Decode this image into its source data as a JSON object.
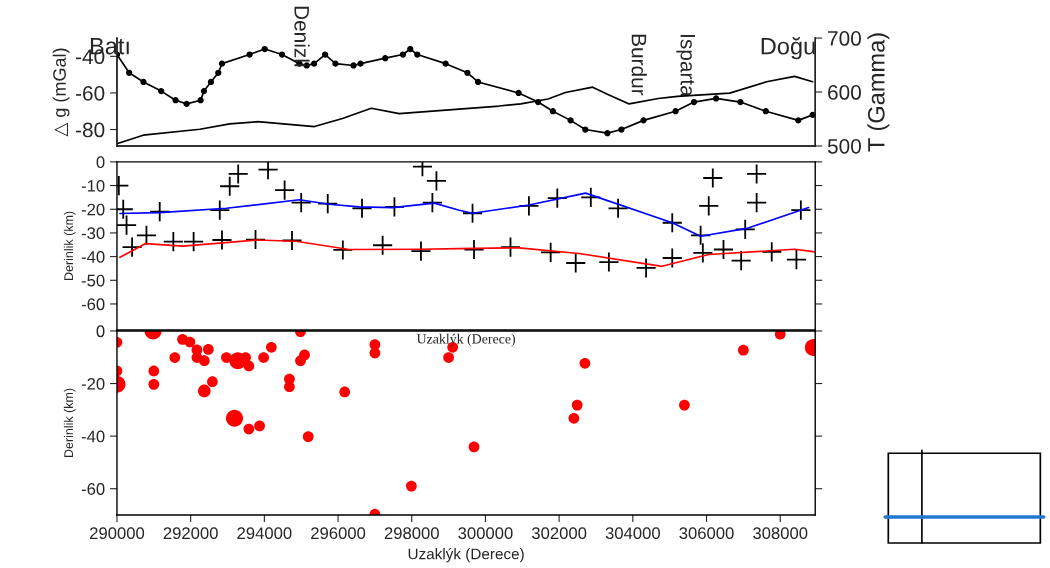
{
  "chart_data": [
    {
      "type": "line",
      "ylabel": "△ g (mGal)",
      "y2label": "T (Gamma)",
      "xlim": [
        290000,
        308950
      ],
      "ylim": [
        -89,
        -30
      ],
      "yticks": [
        -40,
        -60,
        -80
      ],
      "y2lim": [
        500,
        700
      ],
      "y2ticks": [
        500,
        600,
        700
      ],
      "tick_labels": "y",
      "series": [
        {
          "color": "#000000",
          "marker": "circle",
          "x": [
            290000,
            290330,
            290720,
            291200,
            291590,
            291890,
            292270,
            292360,
            292550,
            292750,
            292850,
            293600,
            294010,
            294480,
            294950,
            295150,
            295350,
            295650,
            295930,
            296420,
            296610,
            297280,
            297760,
            297960,
            298150,
            298920,
            299510,
            299800,
            300900,
            301430,
            301830,
            302310,
            302710,
            303310,
            303690,
            304290,
            305160,
            305660,
            306260,
            306920,
            307610,
            308490,
            308880
          ],
          "values": [
            -39,
            -49,
            -54,
            -59,
            -64,
            -66,
            -64,
            -59,
            -54,
            -49,
            -44,
            -39,
            -36,
            -39,
            -44,
            -45,
            -44,
            -39,
            -44,
            -45,
            -44,
            -41,
            -39,
            -36,
            -39,
            -44,
            -49,
            -54,
            -60,
            -65,
            -70,
            -75,
            -80,
            -82,
            -80,
            -75,
            -70,
            -65,
            -63,
            -65,
            -70,
            -75,
            -72
          ]
        },
        {
          "color": "#000000",
          "axis": "y2",
          "marker": "none",
          "x": [
            290000,
            290710,
            292250,
            293060,
            293820,
            295360,
            296120,
            296900,
            297660,
            300370,
            300960,
            301700,
            302170,
            302910,
            303310,
            303900,
            304690,
            305210,
            306630,
            307630,
            308390,
            308880
          ],
          "values": [
            504,
            520,
            531,
            541,
            545,
            536,
            551,
            570,
            560,
            574,
            578,
            587,
            599,
            609,
            596,
            578,
            588,
            592,
            598,
            619,
            629,
            619
          ]
        }
      ],
      "annotations": [
        "Batı",
        "Denizli",
        "Burdur",
        "Isparta",
        "Doğu"
      ]
    },
    {
      "type": "scatter",
      "ylabel": "Derinlik (km)",
      "xlim": [
        290000,
        308950
      ],
      "ylim": [
        -71,
        0
      ],
      "yticks": [
        0,
        -10,
        -20,
        -30,
        -40,
        -50,
        -60
      ],
      "tick_labels": "y",
      "annotations": [
        "Uzaklýk (Derece)"
      ],
      "series": [
        {
          "type": "scatter",
          "color": "#000000",
          "marker": "cross",
          "x": [
            290050,
            290170,
            290260,
            290410,
            290800,
            291160,
            291530,
            292080,
            292790,
            292850,
            293060,
            293290,
            293760,
            294100,
            294550,
            294750,
            295000,
            295720,
            296130,
            296650,
            297210,
            297530,
            298250,
            298560,
            298290,
            298670,
            299650,
            299690,
            301180,
            300680,
            301950,
            301770,
            302450,
            302860,
            303600,
            303350,
            304360,
            305070,
            305070,
            305840,
            305900,
            306060,
            306170,
            306460,
            306940,
            307050,
            307360,
            307360,
            307770,
            308440,
            308560
          ],
          "values": [
            -10,
            -20,
            -26.7,
            -36,
            -31,
            -21,
            -33.7,
            -33.7,
            -20.4,
            -33,
            -10.3,
            -5.1,
            -32.8,
            -3.3,
            -11.9,
            -33.2,
            -17.2,
            -17.6,
            -37.2,
            -19.6,
            -35.2,
            -19,
            -37.7,
            -17.2,
            -2,
            -8,
            -21.7,
            -37,
            -18.6,
            -36,
            -15.3,
            -38.2,
            -42.7,
            -15,
            -19.6,
            -42.3,
            -44.8,
            -25.7,
            -40.6,
            -31,
            -38.4,
            -18.6,
            -6.8,
            -37,
            -41.7,
            -28.5,
            -17.2,
            -5.1,
            -38,
            -41.3,
            -20.4
          ]
        },
        {
          "type": "line",
          "color": "#0000ff",
          "x": [
            290080,
            291160,
            292970,
            294950,
            295760,
            296570,
            297480,
            298610,
            299290,
            299650,
            301180,
            302720,
            305070,
            305840,
            307090,
            308770
          ],
          "values": [
            -21.8,
            -21.4,
            -19.6,
            -16,
            -17.9,
            -19,
            -19.3,
            -17.4,
            -20.4,
            -21.7,
            -18.2,
            -13.2,
            -25.7,
            -31.4,
            -28.1,
            -19.3
          ]
        },
        {
          "type": "line",
          "color": "#ff0000",
          "x": [
            290080,
            290780,
            291790,
            293780,
            294860,
            296300,
            298200,
            299290,
            300910,
            302540,
            304790,
            306060,
            308400,
            308940
          ],
          "values": [
            -40.3,
            -34.5,
            -35.6,
            -33,
            -33.5,
            -37,
            -36.9,
            -36.6,
            -36.3,
            -38.7,
            -44.1,
            -39.1,
            -36.9,
            -38
          ]
        }
      ]
    },
    {
      "type": "bubble",
      "xlabel": "Uzaklýk (Derece)",
      "ylabel": "Derinlik (km)",
      "xlim": [
        290000,
        308950
      ],
      "ylim": [
        -70,
        0
      ],
      "xticks": [
        290000,
        292000,
        294000,
        296000,
        298000,
        300000,
        302000,
        304000,
        306000,
        308000
      ],
      "yticks": [
        0,
        -20,
        -40,
        -60
      ],
      "series": [
        {
          "color": "#ff0000",
          "x": [
            290000,
            290000,
            290000,
            290980,
            291000,
            291000,
            291570,
            291780,
            291980,
            292170,
            292170,
            292370,
            292370,
            292480,
            292590,
            292970,
            293190,
            293280,
            293490,
            293580,
            293580,
            293870,
            293980,
            294190,
            294680,
            294680,
            294980,
            294980,
            295090,
            295190,
            296180,
            297000,
            297000,
            297000,
            297990,
            299000,
            299110,
            299690,
            302400,
            302490,
            302700,
            305400,
            307000,
            308000,
            308900
          ],
          "values": [
            -4.3,
            -15.2,
            -20.3,
            0,
            -15.2,
            -20.3,
            -10.1,
            -3.2,
            -4.2,
            -7.2,
            -10.1,
            -11.3,
            -22.8,
            -7,
            -19.3,
            -10.1,
            -33.2,
            -11.3,
            -10.1,
            -13.3,
            -37.3,
            -36.1,
            -10.1,
            -6.2,
            -18.3,
            -21.2,
            -0.3,
            -11.3,
            -9.1,
            -40.2,
            -23.2,
            -5.2,
            -8.4,
            -69.7,
            -59,
            -10.1,
            -6.2,
            -44.1,
            -33.2,
            -28.2,
            -12.3,
            -28.2,
            -7.3,
            -1.2,
            -6.3
          ],
          "sizes": [
            0.4,
            0.4,
            1,
            1,
            0.4,
            0.4,
            0.4,
            0.4,
            0.4,
            0.4,
            0.4,
            0.4,
            0.55,
            0.4,
            0.4,
            0.4,
            1,
            1,
            0.4,
            0.4,
            0.4,
            0.4,
            0.4,
            0.4,
            0.4,
            0.4,
            0.4,
            0.4,
            0.4,
            0.4,
            0.4,
            0.4,
            0.4,
            0.4,
            0.4,
            0.4,
            0.4,
            0.4,
            0.4,
            0.4,
            0.4,
            0.4,
            0.4,
            0.4,
            1
          ]
        }
      ]
    }
  ]
}
